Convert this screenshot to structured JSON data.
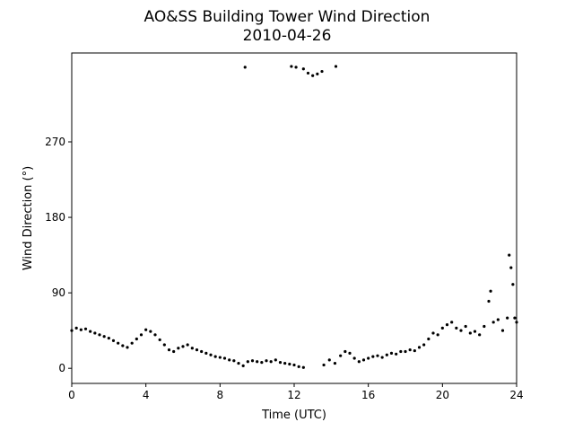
{
  "chart_data": {
    "type": "scatter",
    "title": "AO&SS Building Tower Wind Direction",
    "subtitle": "2010-04-26",
    "x_label": "Time (UTC)",
    "y_label": "Wind Direction (°)",
    "color": "#000000",
    "xlim": [
      0,
      24
    ],
    "xticks": [
      0,
      4,
      8,
      12,
      16,
      20,
      24
    ],
    "ylim": [
      -18,
      376
    ],
    "yticks": [
      0,
      90,
      180,
      270
    ],
    "x": [
      0,
      0.25,
      0.5,
      0.75,
      1,
      1.25,
      1.5,
      1.75,
      2,
      2.25,
      2.5,
      2.75,
      3,
      3.25,
      3.5,
      3.75,
      4,
      4.25,
      4.5,
      4.75,
      5,
      5.25,
      5.5,
      5.75,
      6,
      6.25,
      6.5,
      6.75,
      7,
      7.25,
      7.5,
      7.75,
      8,
      8.25,
      8.5,
      8.75,
      9,
      9.25,
      9.5,
      9.75,
      10,
      10.25,
      10.5,
      10.75,
      11,
      11.25,
      11.5,
      11.75,
      12,
      12.25,
      12.5,
      9.35,
      11.85,
      12.1,
      12.5,
      12.75,
      13,
      13.25,
      13.5,
      14.25,
      13.6,
      13.9,
      14.2,
      14.5,
      14.75,
      15,
      15.25,
      15.5,
      15.75,
      16,
      16.25,
      16.5,
      16.75,
      17,
      17.25,
      17.5,
      17.75,
      18,
      18.25,
      18.5,
      18.75,
      19,
      19.25,
      19.5,
      19.75,
      20,
      20.25,
      20.5,
      20.75,
      21,
      21.25,
      21.5,
      21.75,
      22,
      22.25,
      22.5,
      22.6,
      22.75,
      23,
      23.25,
      23.5,
      23.6,
      23.7,
      23.8,
      23.9,
      24
    ],
    "values": [
      45,
      48,
      46,
      47,
      44,
      42,
      40,
      38,
      36,
      33,
      30,
      27,
      25,
      30,
      35,
      40,
      46,
      44,
      40,
      34,
      28,
      22,
      20,
      24,
      26,
      28,
      24,
      22,
      20,
      18,
      16,
      14,
      13,
      12,
      10,
      9,
      6,
      3,
      8,
      9,
      8,
      7,
      9,
      8,
      10,
      7,
      6,
      5,
      4,
      2,
      1,
      359,
      360,
      359,
      357,
      352,
      349,
      351,
      354,
      360,
      4,
      10,
      6,
      15,
      20,
      18,
      12,
      8,
      10,
      12,
      14,
      15,
      13,
      16,
      18,
      17,
      20,
      20,
      22,
      21,
      25,
      28,
      35,
      42,
      40,
      48,
      52,
      55,
      48,
      45,
      50,
      42,
      44,
      40,
      50,
      80,
      92,
      55,
      58,
      45,
      60,
      135,
      120,
      100,
      60,
      55
    ]
  }
}
